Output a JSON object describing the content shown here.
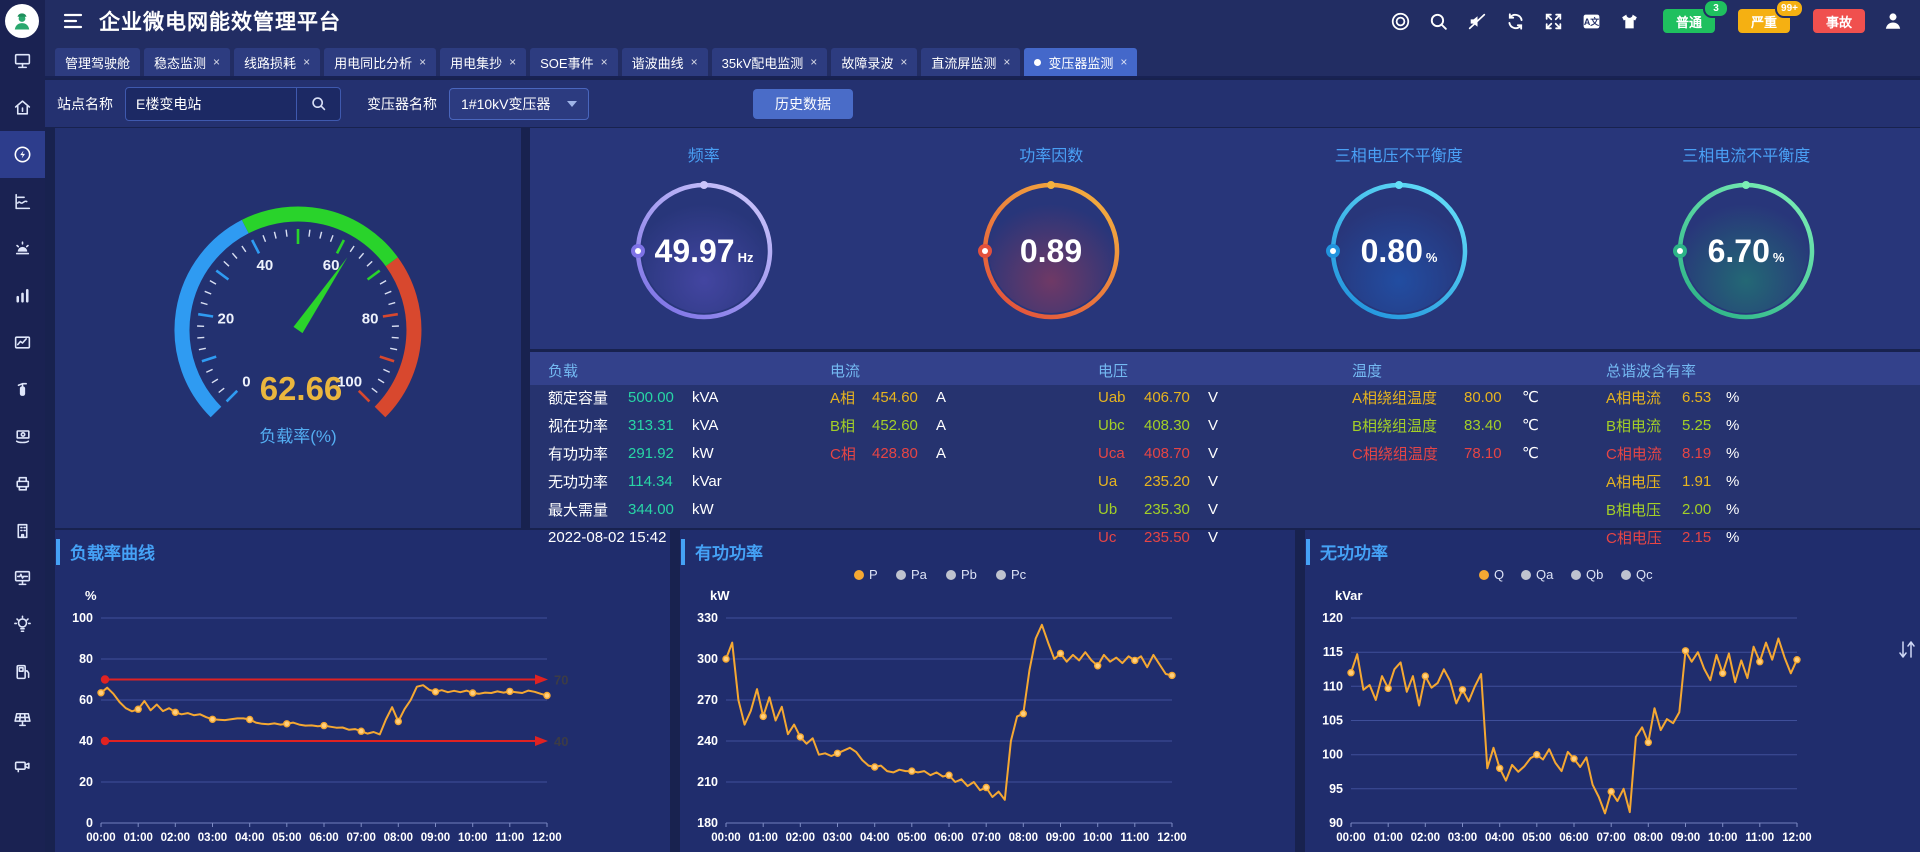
{
  "header": {
    "title": "企业微电网能效管理平台",
    "icons": [
      "menu",
      "lifebuoy",
      "search",
      "mute",
      "refresh",
      "fullscreen",
      "translate",
      "theme",
      "user"
    ],
    "alarms": [
      {
        "label": "普通",
        "count": "3",
        "color": "#1fc05f"
      },
      {
        "label": "严重",
        "count": "99+",
        "color": "#f5b012"
      },
      {
        "label": "事故",
        "count": "",
        "color": "#f0504e"
      }
    ]
  },
  "tabs": [
    {
      "label": "管理驾驶舱",
      "closable": false
    },
    {
      "label": "稳态监测"
    },
    {
      "label": "线路损耗"
    },
    {
      "label": "用电同比分析"
    },
    {
      "label": "用电集抄"
    },
    {
      "label": "SOE事件"
    },
    {
      "label": "谐波曲线"
    },
    {
      "label": "35kV配电监测"
    },
    {
      "label": "故障录波"
    },
    {
      "label": "直流屏监测"
    },
    {
      "label": "变压器监测",
      "active": true
    }
  ],
  "filters": {
    "site_label": "站点名称",
    "site_value": "E楼变电站",
    "transformer_label": "变压器名称",
    "transformer_value": "1#10kV变压器",
    "history_button": "历史数据"
  },
  "sidebar": {
    "items": [
      "screen",
      "home-energy",
      "energy-flow",
      "report-chart",
      "alarm",
      "bar-chart",
      "trend-chart",
      "extinguisher",
      "finance",
      "printer",
      "building",
      "monitor-wave",
      "bulb",
      "ev-charger",
      "solar-panel",
      "camera"
    ],
    "active_index": 2
  },
  "gauge": {
    "label": "负载率(%)",
    "value": 62.66,
    "min": 0,
    "max": 100,
    "tick_labels": [
      0,
      20,
      40,
      60,
      80,
      100
    ],
    "zones": [
      {
        "to": 40,
        "color": "#2f9bf2"
      },
      {
        "to": 70,
        "color": "#29d32b"
      },
      {
        "to": 100,
        "color": "#d8482e"
      }
    ],
    "needle_color": "#2bd42b",
    "value_color": "#eab63e"
  },
  "kpis": [
    {
      "title": "频率",
      "value": "49.97",
      "unit": "Hz",
      "c1": "#cbc5fb",
      "c2": "#7d72e6",
      "glow": "#5e55c8"
    },
    {
      "title": "功率因数",
      "value": "0.89",
      "unit": "",
      "c1": "#f4b13e",
      "c2": "#e2503c",
      "glow": "#b63c52"
    },
    {
      "title": "三相电压不平衡度",
      "value": "0.80",
      "unit": "%",
      "c1": "#63dff8",
      "c2": "#2193dd",
      "glow": "#1c64c8"
    },
    {
      "title": "三相电流不平衡度",
      "value": "6.70",
      "unit": "%",
      "c1": "#7beeb5",
      "c2": "#2cb387",
      "glow": "#1f9a70"
    }
  ],
  "phase_colors": {
    "a": "#e7b41f",
    "b": "#a3cf27",
    "c": "#e64545"
  },
  "table": {
    "headers": [
      "负载",
      "电流",
      "电压",
      "温度",
      "总谐波含有率"
    ],
    "load_value_color": "#28d6a6",
    "columns": {
      "load": [
        {
          "label": "额定容量",
          "value": "500.00",
          "unit": "kVA"
        },
        {
          "label": "视在功率",
          "value": "313.31",
          "unit": "kVA"
        },
        {
          "label": "有功功率",
          "value": "291.92",
          "unit": "kW"
        },
        {
          "label": "无功功率",
          "value": "114.34",
          "unit": "kVar"
        },
        {
          "label": "最大需量",
          "value": "344.00",
          "unit": "kW"
        },
        {
          "label": "2022-08-02 15:42",
          "value": "",
          "unit": ""
        }
      ],
      "current": [
        {
          "label": "A相",
          "value": "454.60",
          "unit": "A",
          "phase": "a"
        },
        {
          "label": "B相",
          "value": "452.60",
          "unit": "A",
          "phase": "b"
        },
        {
          "label": "C相",
          "value": "428.80",
          "unit": "A",
          "phase": "c"
        }
      ],
      "voltage": [
        {
          "label": "Uab",
          "value": "406.70",
          "unit": "V",
          "phase": "a"
        },
        {
          "label": "Ubc",
          "value": "408.30",
          "unit": "V",
          "phase": "b"
        },
        {
          "label": "Uca",
          "value": "408.70",
          "unit": "V",
          "phase": "c"
        },
        {
          "label": "Ua",
          "value": "235.20",
          "unit": "V",
          "phase": "a"
        },
        {
          "label": "Ub",
          "value": "235.30",
          "unit": "V",
          "phase": "b"
        },
        {
          "label": "Uc",
          "value": "235.50",
          "unit": "V",
          "phase": "c"
        }
      ],
      "temperature": [
        {
          "label": "A相绕组温度",
          "value": "80.00",
          "unit": "℃",
          "phase": "a"
        },
        {
          "label": "B相绕组温度",
          "value": "83.40",
          "unit": "℃",
          "phase": "b"
        },
        {
          "label": "C相绕组温度",
          "value": "78.10",
          "unit": "℃",
          "phase": "c"
        }
      ],
      "thd": [
        {
          "label": "A相电流",
          "value": "6.53",
          "unit": "%",
          "phase": "a"
        },
        {
          "label": "B相电流",
          "value": "5.25",
          "unit": "%",
          "phase": "b"
        },
        {
          "label": "C相电流",
          "value": "8.19",
          "unit": "%",
          "phase": "c"
        },
        {
          "label": "A相电压",
          "value": "1.91",
          "unit": "%",
          "phase": "a"
        },
        {
          "label": "B相电压",
          "value": "2.00",
          "unit": "%",
          "phase": "b"
        },
        {
          "label": "C相电压",
          "value": "2.15",
          "unit": "%",
          "phase": "c"
        }
      ]
    }
  },
  "chart_data": [
    {
      "type": "line",
      "title": "负载率曲线",
      "unit": "%",
      "ylim": [
        0,
        100
      ],
      "ystep": 20,
      "grid": true,
      "line_color": "#f5a832",
      "x_labels": [
        "00:00",
        "01:00",
        "02:00",
        "03:00",
        "04:00",
        "05:00",
        "06:00",
        "07:00",
        "08:00",
        "09:00",
        "10:00",
        "11:00",
        "12:00"
      ],
      "marklines": [
        {
          "value": 70,
          "label": "70",
          "color": "#e02222"
        },
        {
          "value": 40,
          "label": "40",
          "color": "#e02222"
        }
      ],
      "series": [
        {
          "name": "负载率",
          "color": "#f5a832",
          "values": [
            63.5,
            66,
            63,
            59,
            56,
            54.5,
            55.5,
            59.5,
            55,
            57.8,
            54.6,
            56,
            54,
            53,
            53.6,
            52.6,
            53,
            51.6,
            50.6,
            50.4,
            50.2,
            50.6,
            51,
            51,
            50.5,
            49,
            48.4,
            48.2,
            48.6,
            48,
            48.4,
            49,
            48,
            47.5,
            47.6,
            47.2,
            47.5,
            47,
            46.5,
            46.6,
            45.5,
            45.8,
            44.8,
            43.6,
            44.4,
            43.2,
            50.5,
            56.5,
            49.5,
            55.5,
            60,
            66.5,
            67.2,
            65,
            64,
            64.8,
            63.8,
            64.5,
            63.8,
            64.6,
            63.4,
            63,
            63.6,
            63.4,
            64.2,
            63.6,
            64.2,
            63.8,
            63.4,
            64.6,
            64,
            63,
            62.2
          ]
        }
      ]
    },
    {
      "type": "line",
      "title": "有功功率",
      "unit": "kW",
      "ylim": [
        180,
        330
      ],
      "ystep": 30,
      "grid": true,
      "line_color": "#f5a832",
      "legend": [
        {
          "label": "P",
          "active": true
        },
        {
          "label": "Pa"
        },
        {
          "label": "Pb"
        },
        {
          "label": "Pc"
        }
      ],
      "x_labels": [
        "00:00",
        "01:00",
        "02:00",
        "03:00",
        "04:00",
        "05:00",
        "06:00",
        "07:00",
        "08:00",
        "09:00",
        "10:00",
        "11:00",
        "12:00"
      ],
      "series": [
        {
          "name": "P",
          "color": "#f5a832",
          "values": [
            300,
            312,
            270,
            252,
            262,
            278,
            258,
            272,
            255,
            265,
            245,
            252,
            243,
            238,
            242,
            230,
            231,
            229,
            231,
            233,
            235,
            232,
            226,
            222,
            221,
            222,
            218,
            217,
            219,
            218,
            218,
            217,
            218,
            215,
            217,
            214,
            215,
            210,
            212,
            207,
            210,
            204,
            206,
            199,
            203,
            197,
            240,
            258,
            260,
            292,
            315,
            325,
            312,
            300,
            304,
            298,
            303,
            299,
            305,
            299,
            295,
            303,
            298,
            301,
            297,
            302,
            299,
            302,
            294,
            303,
            296,
            289,
            288
          ]
        }
      ]
    },
    {
      "type": "line",
      "title": "无功功率",
      "unit": "kVar",
      "ylim": [
        90,
        120
      ],
      "ystep": 5,
      "grid": true,
      "line_color": "#f5a832",
      "toolbox": true,
      "legend": [
        {
          "label": "Q",
          "active": true
        },
        {
          "label": "Qa"
        },
        {
          "label": "Qb"
        },
        {
          "label": "Qc"
        }
      ],
      "x_labels": [
        "00:00",
        "01:00",
        "02:00",
        "03:00",
        "04:00",
        "05:00",
        "06:00",
        "07:00",
        "08:00",
        "09:00",
        "10:00",
        "11:00",
        "12:00"
      ],
      "series": [
        {
          "name": "Q",
          "color": "#f5a832",
          "values": [
            112,
            114.7,
            109.5,
            110.2,
            108,
            111.5,
            109.7,
            112.5,
            113.5,
            109.2,
            111.5,
            107.2,
            111.5,
            109.8,
            110.5,
            112.5,
            110.8,
            107.5,
            109.5,
            107.8,
            110,
            111.8,
            98,
            101,
            98,
            96.2,
            98.5,
            97.5,
            98.3,
            99.5,
            100,
            99.3,
            100.8,
            98.8,
            97.6,
            100.4,
            99.4,
            98.2,
            99.6,
            95.6,
            93.8,
            91.4,
            94.6,
            93.2,
            95,
            91.6,
            102.6,
            104,
            101.8,
            106.8,
            103.6,
            105.2,
            104.6,
            106.2,
            115.2,
            113.6,
            115,
            112.6,
            110.9,
            114.6,
            111.9,
            114.8,
            110.6,
            113.8,
            111.2,
            115.8,
            113.6,
            116.4,
            113.9,
            117,
            114.2,
            111.9,
            113.9
          ]
        }
      ]
    }
  ],
  "ui_glyphs": {
    "close": "×"
  }
}
